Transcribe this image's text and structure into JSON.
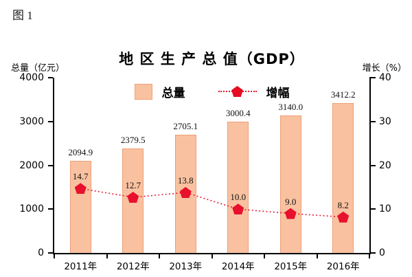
{
  "figure_label": "图 1",
  "chart_data": {
    "type": "bar",
    "title": "地 区 生 产 总 值（GDP）",
    "categories": [
      "2011年",
      "2012年",
      "2013年",
      "2014年",
      "2015年",
      "2016年"
    ],
    "series": [
      {
        "name": "总量",
        "type": "bar",
        "axis": "left",
        "values": [
          2094.9,
          2379.5,
          2705.1,
          3000.4,
          3140.0,
          3412.2
        ],
        "labels": [
          "2094.9",
          "2379.5",
          "2705.1",
          "3000.4",
          "3140.0",
          "3412.2"
        ],
        "fill_color": "#f9c1a0",
        "border_color": "#ec9e78"
      },
      {
        "name": "增幅",
        "type": "line",
        "axis": "right",
        "values": [
          14.7,
          12.7,
          13.8,
          10.0,
          9.0,
          8.2
        ],
        "labels": [
          "14.7",
          "12.7",
          "13.8",
          "10.0",
          "9.0",
          "8.2"
        ],
        "color": "#e8112d",
        "marker": "pentagon",
        "line_style": "dotted"
      }
    ],
    "left_axis": {
      "label": "总量（亿元）",
      "min": 0,
      "max": 4000,
      "ticks": [
        "0",
        "1000",
        "2000",
        "3000",
        "4000"
      ]
    },
    "right_axis": {
      "label": "增长（%）",
      "min": 0,
      "max": 40,
      "ticks": [
        "0",
        "10",
        "20",
        "30",
        "40"
      ]
    },
    "legend": {
      "position": "top",
      "items": [
        {
          "label": "总量"
        },
        {
          "label": "增幅"
        }
      ]
    },
    "grid": false
  }
}
